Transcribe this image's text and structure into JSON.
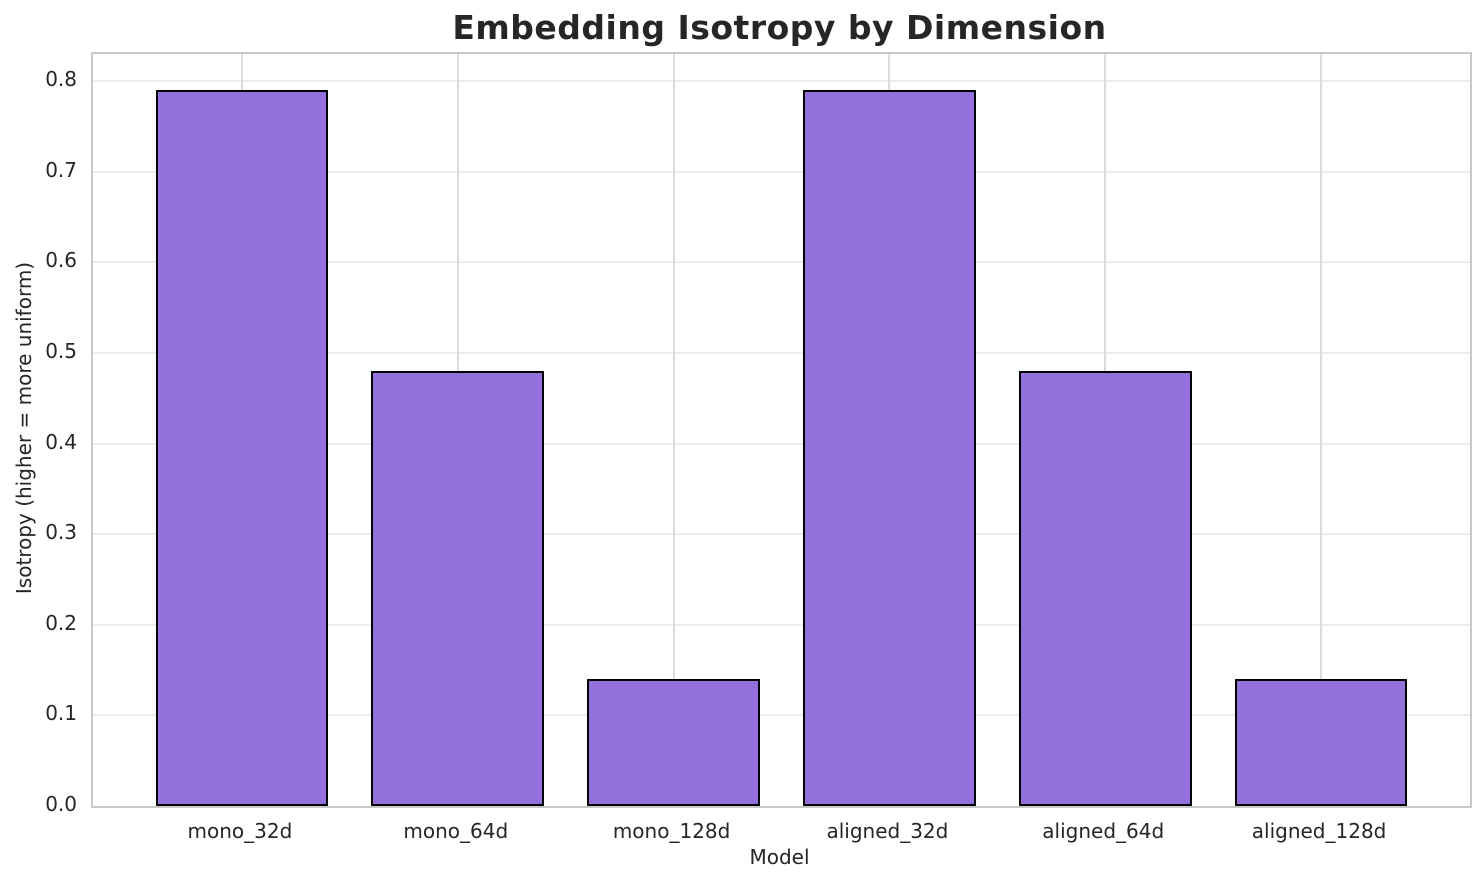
{
  "chart_data": {
    "type": "bar",
    "title": "Embedding Isotropy by Dimension",
    "xlabel": "Model",
    "ylabel": "Isotropy (higher = more uniform)",
    "categories": [
      "mono_32d",
      "mono_64d",
      "mono_128d",
      "aligned_32d",
      "aligned_64d",
      "aligned_128d"
    ],
    "values": [
      0.79,
      0.48,
      0.14,
      0.79,
      0.48,
      0.14
    ],
    "yticks": [
      0.0,
      0.1,
      0.2,
      0.3,
      0.4,
      0.5,
      0.6,
      0.7,
      0.8
    ],
    "ylim": [
      0,
      0.83
    ],
    "grid": true,
    "legend": "none",
    "bar_color": "#9370DB",
    "bar_edge_color": "#000000",
    "grid_color_horizontal": "#ececec",
    "grid_color_vertical": "#dcdcdc",
    "spine_color": "#c8c8c8",
    "text_color": "#262626",
    "bar_width_fraction": 0.8,
    "x_edge_margin_units": 0.69
  }
}
